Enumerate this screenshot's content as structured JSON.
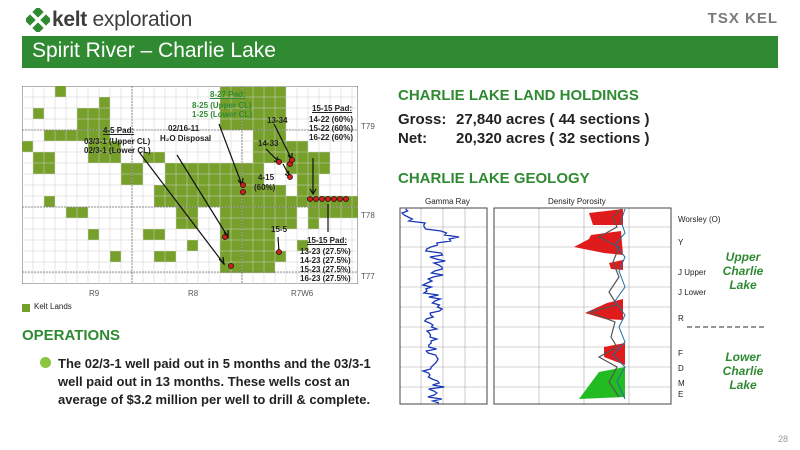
{
  "header": {
    "brand": "kelt",
    "brand_suffix": "exploration",
    "exchange_logo": "TSX KEL",
    "title": "Spirit River – Charlie Lake",
    "page_number": "28"
  },
  "map": {
    "callouts": {
      "pad_827_title": "8-27 Pad:",
      "pad_827_l1": "8-25 (Upper CL)",
      "pad_827_l2": "1-25 (Lower CL)",
      "disposal_l1": "02/16-11",
      "disposal_l2": "H₂O Disposal",
      "pad_45_title": "4-5 Pad:",
      "pad_45_l1": "03/3-1 (Upper CL)",
      "pad_45_l2": "02/3-1 (Lower CL)",
      "w1334": "13-34",
      "w1433": "14-33",
      "w415_l1": "4-15",
      "w415_l2": "(60%)",
      "w155": "15-5",
      "pad_1515a_title": "15-15 Pad:",
      "pad_1515a_l1": "14-22 (60%)",
      "pad_1515a_l2": "15-22 (60%)",
      "pad_1515a_l3": "16-22 (60%)",
      "pad_1515b_title": "15-15 Pad:",
      "pad_1515b_l1": "13-23 (27.5%)",
      "pad_1515b_l2": "14-23 (27.5%)",
      "pad_1515b_l3": "15-23 (27.5%)",
      "pad_1515b_l4": "16-23 (27.5%)"
    },
    "townships": {
      "t79": "T79",
      "t78": "T78",
      "t77": "T77"
    },
    "ranges": {
      "r9": "R9",
      "r8": "R8",
      "r7": "R7W6"
    },
    "legend_label": "Kelt Lands",
    "colors": {
      "land": "#77a02b",
      "well": "#cc1f1f"
    }
  },
  "holdings": {
    "heading": "CHARLIE LAKE LAND HOLDINGS",
    "gross_label": "Gross:",
    "gross_value": "27,840 acres ( 44 sections )",
    "net_label": "Net:",
    "net_value": "20,320 acres ( 32 sections )"
  },
  "geology": {
    "heading": "CHARLIE LAKE GEOLOGY",
    "track1_label": "Gamma Ray",
    "track2_label": "Density Porosity",
    "markers": {
      "worsley": "Worsley (O)",
      "y": "Y",
      "j_upper": "J Upper",
      "j_lower": "J Lower",
      "r": "R",
      "f": "F",
      "d": "D",
      "m": "M",
      "e": "E"
    },
    "upper_zone": [
      "Upper",
      "Charlie",
      "Lake"
    ],
    "lower_zone": [
      "Lower",
      "Charlie",
      "Lake"
    ]
  },
  "operations": {
    "heading": "OPERATIONS",
    "body": "The 02/3-1 well paid out in 5 months and the 03/3-1 well paid out in 13 months. These wells cost an average of $3.2 million per well to drill & complete."
  }
}
